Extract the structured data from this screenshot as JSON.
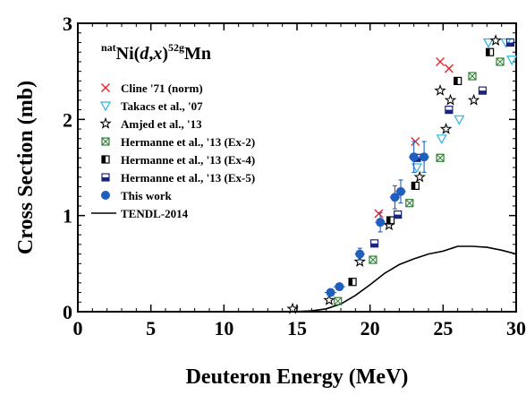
{
  "chart_data": {
    "type": "scatter",
    "title": "",
    "annotation": {
      "target_sup": "nat",
      "target": "Ni(",
      "projectile": "d",
      "sep": ",",
      "ejectile": "x",
      "close": ")",
      "product_sup": "52g",
      "product": "Mn"
    },
    "xlabel": "Deuteron Energy (MeV)",
    "ylabel": "Cross Section (mb)",
    "xlim": [
      0,
      30
    ],
    "ylim": [
      0,
      3
    ],
    "xticks": [
      "0",
      "5",
      "10",
      "15",
      "20",
      "25",
      "30"
    ],
    "yticks": [
      "0",
      "1",
      "2",
      "3"
    ],
    "grid": false,
    "legend_position": "upper-left",
    "series": [
      {
        "name": "Cline '71 (norm)",
        "marker": "x",
        "color": "#e8202a",
        "points": [
          [
            20.6,
            1.02
          ],
          [
            23.1,
            1.77
          ],
          [
            24.8,
            2.6
          ],
          [
            25.4,
            2.53
          ]
        ]
      },
      {
        "name": "Takacs et al., '07",
        "marker": "triangle-down",
        "color": "#29b6e0",
        "points": [
          [
            23.2,
            1.5
          ],
          [
            24.9,
            1.8
          ],
          [
            26.1,
            2.0
          ],
          [
            28.1,
            2.8
          ],
          [
            29.3,
            2.8
          ],
          [
            29.7,
            2.62
          ]
        ]
      },
      {
        "name": "Amjed et al., '13",
        "marker": "star",
        "color": "#000000",
        "points": [
          [
            14.7,
            0.03
          ],
          [
            17.2,
            0.12
          ],
          [
            19.3,
            0.52
          ],
          [
            21.3,
            0.9
          ],
          [
            23.4,
            1.4
          ],
          [
            24.8,
            2.3
          ],
          [
            25.2,
            1.9
          ],
          [
            25.5,
            2.2
          ],
          [
            27.1,
            2.2
          ],
          [
            28.6,
            2.82
          ]
        ]
      },
      {
        "name": "Hermanne et al., '13 (Ex-2)",
        "marker": "square-x",
        "color": "#2e7d32",
        "points": [
          [
            17.8,
            0.11
          ],
          [
            20.2,
            0.54
          ],
          [
            22.7,
            1.13
          ],
          [
            24.8,
            1.6
          ],
          [
            27.0,
            2.45
          ],
          [
            28.9,
            2.6
          ]
        ]
      },
      {
        "name": "Hermanne et al., '13 (Ex-4)",
        "marker": "square-half-v",
        "color": "#000000",
        "points": [
          [
            18.8,
            0.31
          ],
          [
            21.4,
            0.95
          ],
          [
            23.1,
            1.31
          ],
          [
            26.0,
            2.4
          ],
          [
            28.2,
            2.7
          ]
        ]
      },
      {
        "name": "Hermanne et al., '13 (Ex-5)",
        "marker": "square-half-h",
        "color": "#1a237e",
        "points": [
          [
            20.3,
            0.71
          ],
          [
            21.9,
            1.01
          ],
          [
            23.2,
            1.6
          ],
          [
            25.4,
            2.1
          ],
          [
            27.7,
            2.3
          ],
          [
            29.6,
            2.8
          ]
        ]
      },
      {
        "name": "This work",
        "marker": "circle",
        "color": "#1f5fbf",
        "points": [
          {
            "x": 17.3,
            "y": 0.2,
            "xerr": 0.4,
            "yerr": 0.03
          },
          {
            "x": 17.9,
            "y": 0.26,
            "xerr": 0.4,
            "yerr": 0.03
          },
          {
            "x": 19.3,
            "y": 0.6,
            "xerr": 0.35,
            "yerr": 0.06
          },
          {
            "x": 20.7,
            "y": 0.93,
            "xerr": 0.35,
            "yerr": 0.1
          },
          {
            "x": 21.7,
            "y": 1.19,
            "xerr": 0.35,
            "yerr": 0.12
          },
          {
            "x": 22.1,
            "y": 1.25,
            "xerr": 0.35,
            "yerr": 0.12
          },
          {
            "x": 23.0,
            "y": 1.61,
            "xerr": 0.35,
            "yerr": 0.16
          },
          {
            "x": 23.7,
            "y": 1.61,
            "xerr": 0.35,
            "yerr": 0.16
          }
        ]
      },
      {
        "name": "TENDL-2014",
        "marker": "line",
        "color": "#000000",
        "points": [
          [
            1,
            0.0
          ],
          [
            10,
            0.0
          ],
          [
            14,
            0.0
          ],
          [
            15,
            0.002
          ],
          [
            16,
            0.008
          ],
          [
            17,
            0.03
          ],
          [
            18,
            0.08
          ],
          [
            19,
            0.17
          ],
          [
            20,
            0.28
          ],
          [
            21,
            0.4
          ],
          [
            22,
            0.49
          ],
          [
            23,
            0.55
          ],
          [
            24,
            0.6
          ],
          [
            25,
            0.63
          ],
          [
            26,
            0.68
          ],
          [
            27,
            0.68
          ],
          [
            28,
            0.67
          ],
          [
            29,
            0.64
          ],
          [
            30,
            0.6
          ]
        ]
      }
    ]
  }
}
